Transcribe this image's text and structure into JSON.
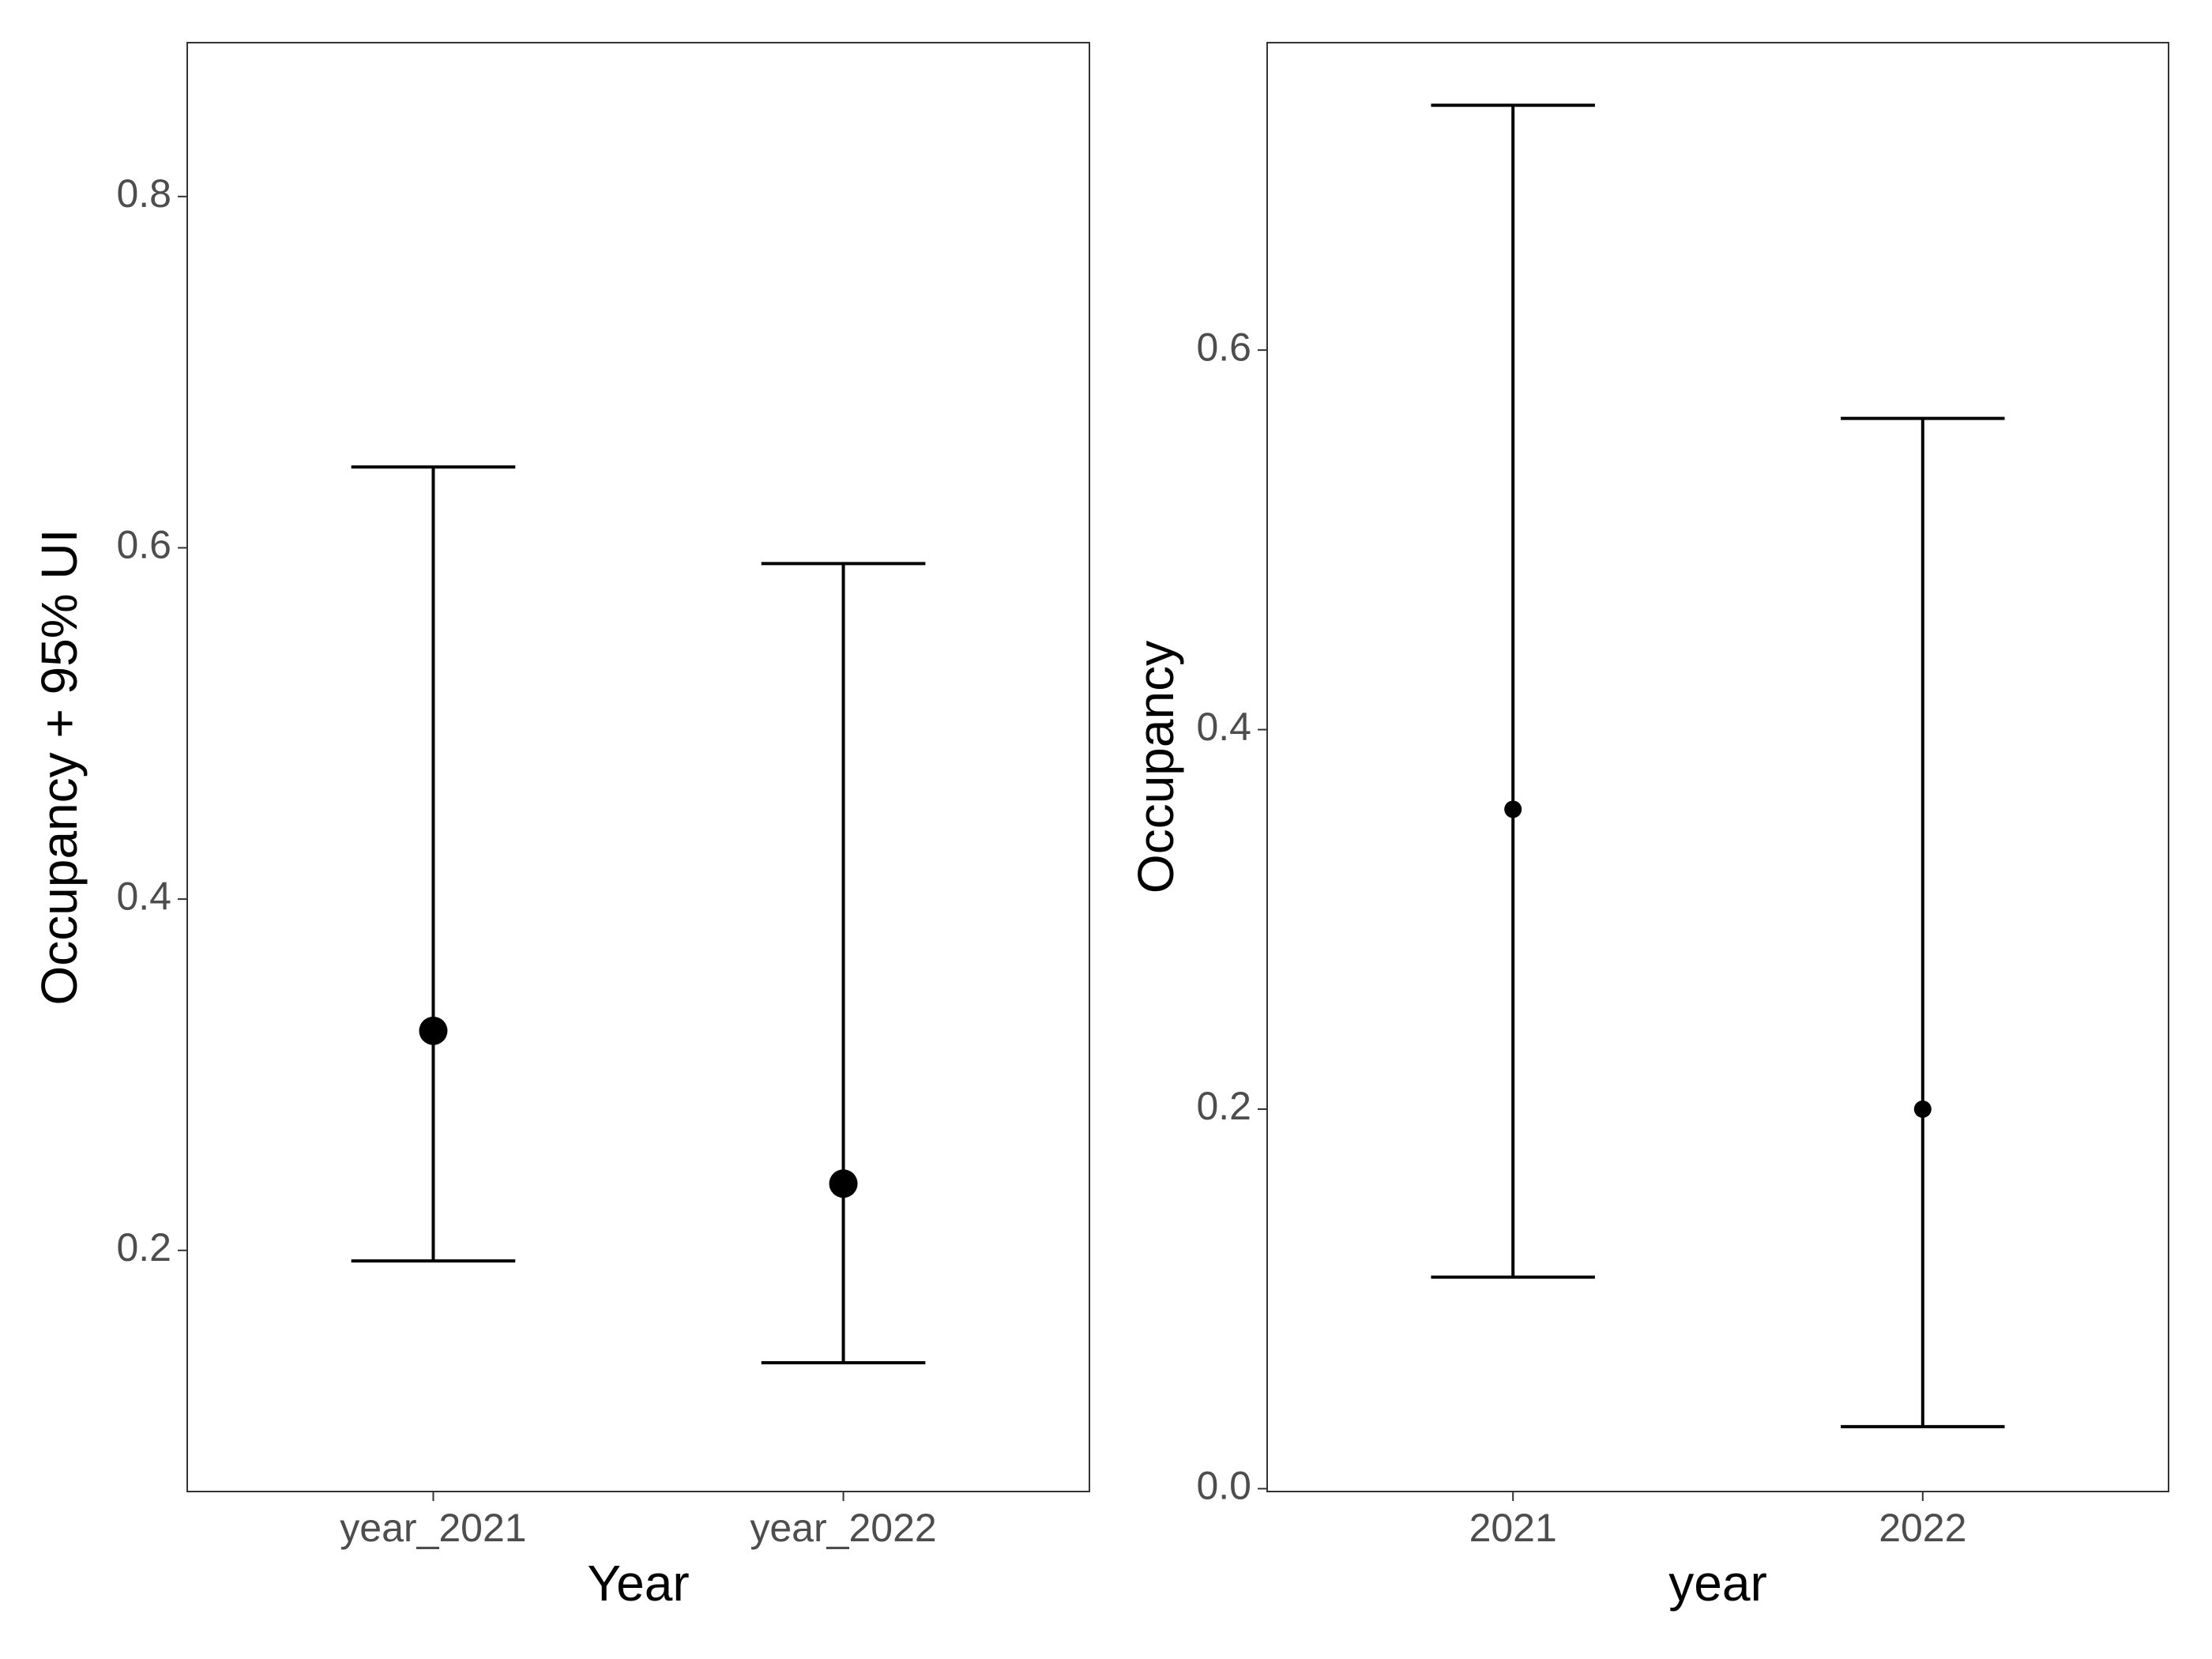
{
  "chart_data": [
    {
      "type": "errorbar",
      "x_label": "Year",
      "y_label": "Occupancy + 95% UI",
      "categories": [
        "year_2021",
        "year_2022"
      ],
      "values": [
        0.325,
        0.238
      ],
      "lower": [
        0.194,
        0.136
      ],
      "upper": [
        0.646,
        0.591
      ],
      "color": "#000000",
      "ylim": [
        0.0627,
        0.8876
      ],
      "yticks": [
        0.2,
        0.4,
        0.6,
        0.8
      ],
      "grid": false
    },
    {
      "type": "errorbar",
      "x_label": "year",
      "y_label": "Occupancy",
      "categories": [
        "2021",
        "2022"
      ],
      "values": [
        0.358,
        0.2
      ],
      "lower": [
        0.1115,
        0.0327
      ],
      "upper": [
        0.729,
        0.564
      ],
      "color": "#000000",
      "ylim": [
        -0.0015,
        0.762
      ],
      "yticks": [
        0.0,
        0.2,
        0.4,
        0.6
      ],
      "grid": false
    }
  ]
}
